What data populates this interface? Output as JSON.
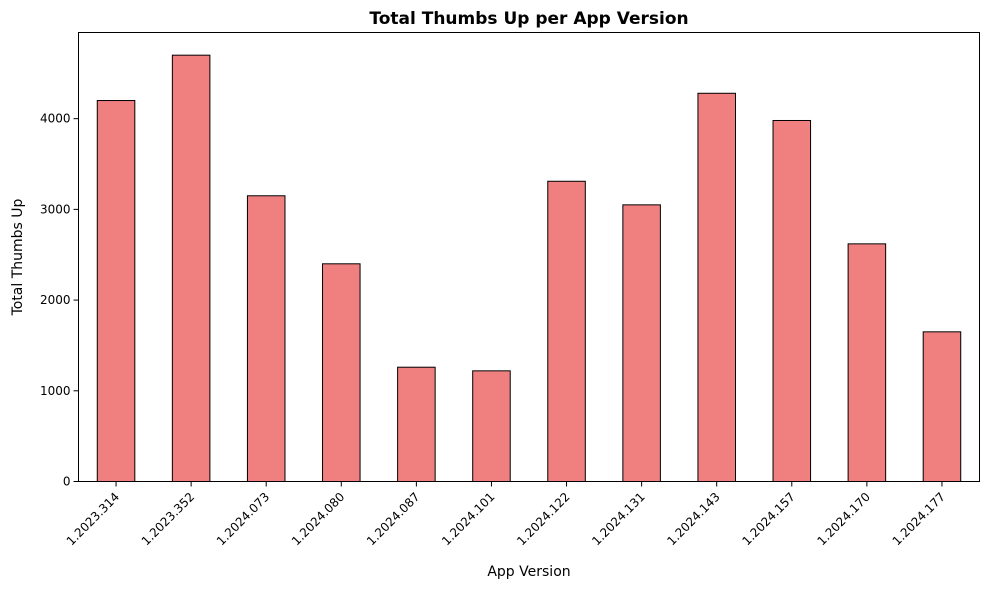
{
  "chart_data": {
    "type": "bar",
    "title": "Total Thumbs Up per App Version",
    "xlabel": "App Version",
    "ylabel": "Total Thumbs Up",
    "categories": [
      "1.2023.314",
      "1.2023.352",
      "1.2024.073",
      "1.2024.080",
      "1.2024.087",
      "1.2024.101",
      "1.2024.122",
      "1.2024.131",
      "1.2024.143",
      "1.2024.157",
      "1.2024.170",
      "1.2024.177"
    ],
    "values": [
      4200,
      4700,
      3150,
      2400,
      1260,
      1220,
      3310,
      3050,
      4280,
      3980,
      2620,
      1650
    ],
    "ylim": [
      0,
      4950
    ],
    "yticks": [
      0,
      1000,
      2000,
      3000,
      4000
    ],
    "grid": false,
    "legend": "none",
    "bar_color": "#F08080",
    "edge_color": "#000000"
  }
}
